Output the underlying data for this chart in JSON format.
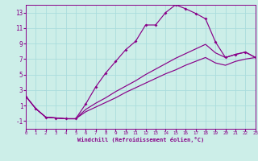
{
  "xlabel": "Windchill (Refroidissement éolien,°C)",
  "background_color": "#cceee8",
  "grid_color": "#aadddd",
  "line_color": "#880088",
  "xlim": [
    0,
    23
  ],
  "ylim": [
    -2.0,
    14.0
  ],
  "xticks": [
    0,
    1,
    2,
    3,
    4,
    5,
    6,
    7,
    8,
    9,
    10,
    11,
    12,
    13,
    14,
    15,
    16,
    17,
    18,
    19,
    20,
    21,
    22,
    23
  ],
  "yticks": [
    -1,
    1,
    3,
    5,
    7,
    9,
    11,
    13
  ],
  "curve1_x": [
    0,
    1,
    2,
    3,
    4,
    5,
    6,
    7,
    8,
    9,
    10,
    11,
    12,
    13,
    14,
    15,
    16,
    17,
    18,
    19,
    20,
    21,
    22,
    23
  ],
  "curve1_y": [
    2.2,
    0.6,
    -0.5,
    -0.6,
    -0.7,
    -0.7,
    1.2,
    3.4,
    5.2,
    6.7,
    8.2,
    9.3,
    11.4,
    11.4,
    13.0,
    14.0,
    13.5,
    12.9,
    12.2,
    9.2,
    7.2,
    7.6,
    7.9,
    7.2
  ],
  "curve2_x": [
    0,
    1,
    2,
    3,
    4,
    5,
    6,
    7,
    8,
    9,
    10,
    11,
    12,
    13,
    14,
    15,
    16,
    17,
    18,
    19,
    20,
    21,
    22,
    23
  ],
  "curve2_y": [
    2.2,
    0.6,
    -0.5,
    -0.6,
    -0.7,
    -0.7,
    0.5,
    1.3,
    2.0,
    2.8,
    3.5,
    4.2,
    5.0,
    5.7,
    6.4,
    7.1,
    7.7,
    8.3,
    8.9,
    7.8,
    7.2,
    7.6,
    7.9,
    7.2
  ],
  "curve3_x": [
    0,
    1,
    2,
    3,
    4,
    5,
    6,
    7,
    8,
    9,
    10,
    11,
    12,
    13,
    14,
    15,
    16,
    17,
    18,
    19,
    20,
    21,
    22,
    23
  ],
  "curve3_y": [
    2.2,
    0.6,
    -0.5,
    -0.6,
    -0.7,
    -0.7,
    0.2,
    0.8,
    1.4,
    2.0,
    2.7,
    3.3,
    3.9,
    4.5,
    5.1,
    5.6,
    6.2,
    6.7,
    7.2,
    6.5,
    6.2,
    6.7,
    7.0,
    7.2
  ]
}
